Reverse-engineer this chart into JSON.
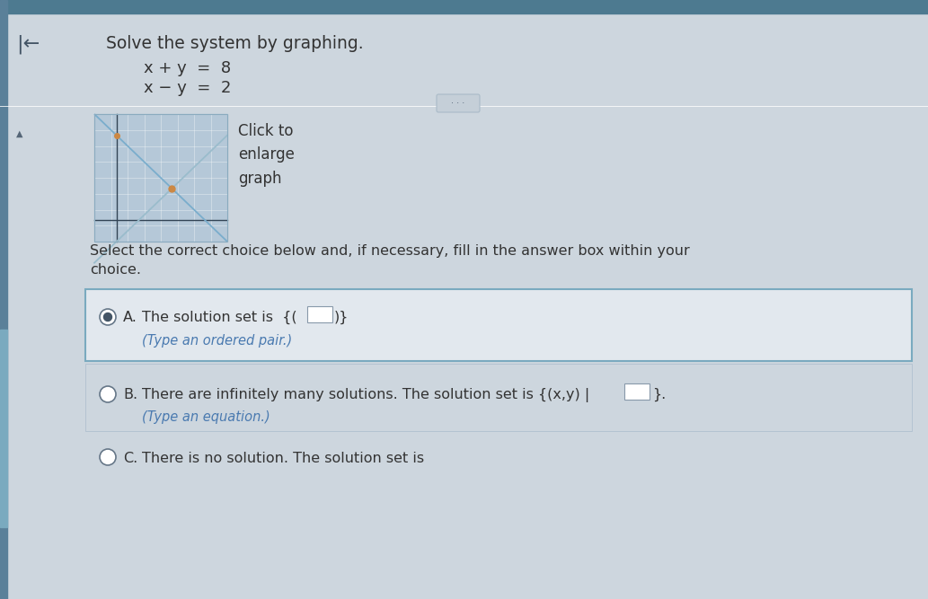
{
  "title": "Solve the system by graphing.",
  "eq1": "x + y  =  8",
  "eq2": "x − y  =  2",
  "click_text": "Click to\nenlarge\ngraph",
  "select_text": "Select the correct choice below and, if necessary, fill in the answer box within your\nchoice.",
  "choice_A_main": "The solution set is {(",
  "choice_A_end": ")}.",
  "choice_A_sub": "(Type an ordered pair.)",
  "choice_B_main": "There are infinitely many solutions. The solution set is {(x,y) |",
  "choice_B_end": "}.",
  "choice_B_sub": "(Type an equation.)",
  "choice_C_main": "There is no solution. The solution set is",
  "bg_color": "#cdd6de",
  "panel_bg": "#cdd6de",
  "graph_bg": "#b5c8d8",
  "choice_A_bg": "#e2e8ee",
  "text_color": "#333333",
  "blue_text_color": "#4a7ab0",
  "header_bar_color": "#4d7a90",
  "left_bar_color": "#5a8099",
  "border_color": "#7aaabf",
  "radio_fill": "#445566",
  "dot_color": "#cc8844",
  "graph_line1_color": "#7aadcc",
  "graph_line2_color": "#9abccc",
  "white": "#ffffff"
}
